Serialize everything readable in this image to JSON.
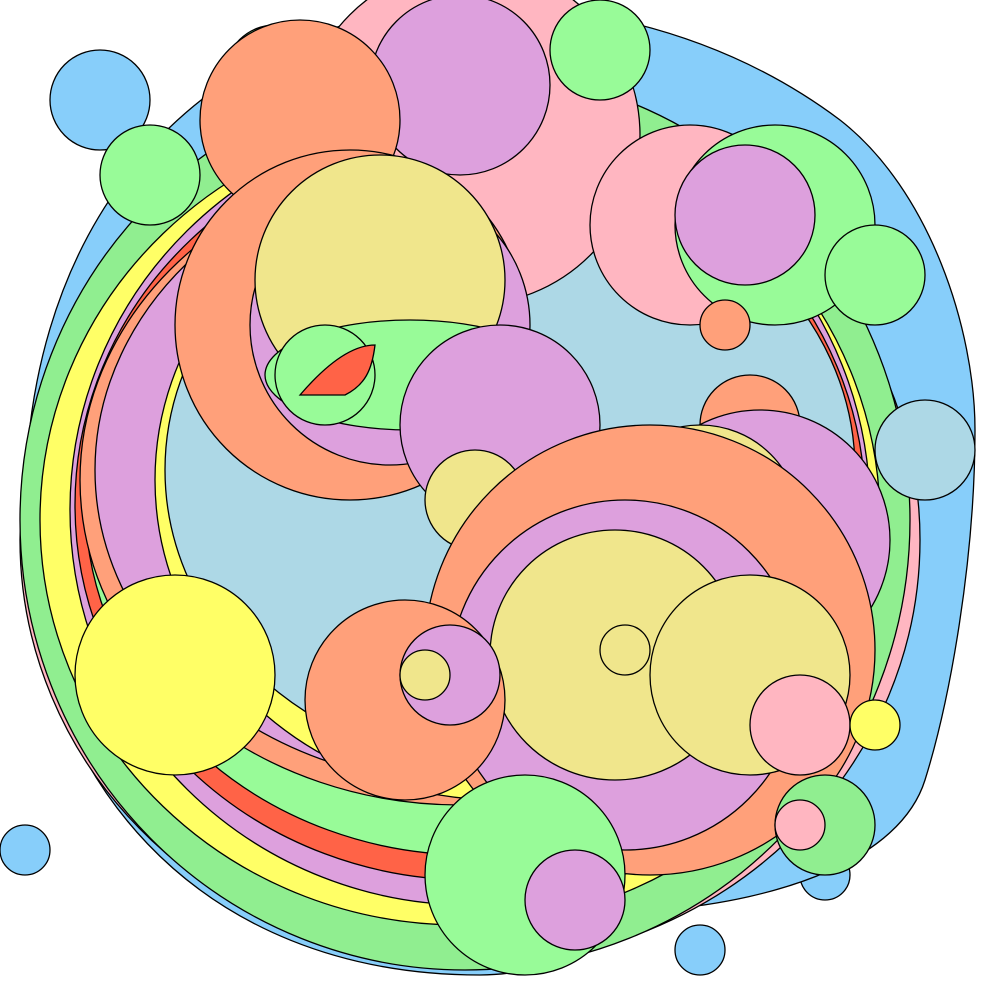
{
  "palette": {
    "sky": "#87CEFA",
    "light_blue": "#ADD8E6",
    "light_green": "#98FB98",
    "mint_green": "#90EE90",
    "yellow": "#FFFF66",
    "khaki": "#F0E68C",
    "pink": "#FFB6C1",
    "plum": "#DDA0DD",
    "salmon": "#FFA07A",
    "tomato": "#FF6347",
    "outline": "#000000"
  },
  "artwork": {
    "subject": "overlapping-circles",
    "background": "#FFFFFF"
  }
}
